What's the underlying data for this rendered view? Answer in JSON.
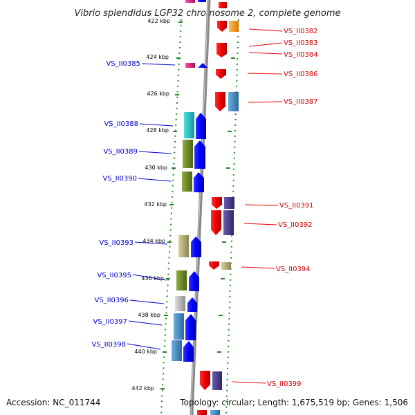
{
  "title": "Vibrio splendidus LGP32 chromosome 2, complete genome",
  "accession": "Accession: NC_011744",
  "topology": "Topology: circular; Length: 1,675,519 bp; Genes: 1,506",
  "axis_ticks": [
    "422 kbp",
    "424 kbp",
    "426 kbp",
    "428 kbp",
    "430 kbp",
    "432 kbp",
    "434 kbp",
    "436 kbp",
    "438 kbp",
    "440 kbp",
    "442 kbp"
  ],
  "genes": [
    {
      "label": "VS_II0382",
      "side": "right"
    },
    {
      "label": "VS_II0383",
      "side": "right"
    },
    {
      "label": "VS_II0384",
      "side": "right"
    },
    {
      "label": "VS_II0385",
      "side": "left"
    },
    {
      "label": "VS_II0386",
      "side": "right"
    },
    {
      "label": "VS_II0387",
      "side": "right"
    },
    {
      "label": "VS_II0388",
      "side": "left"
    },
    {
      "label": "VS_II0389",
      "side": "left"
    },
    {
      "label": "VS_II0390",
      "side": "left"
    },
    {
      "label": "VS_II0391",
      "side": "right"
    },
    {
      "label": "VS_II0392",
      "side": "right"
    },
    {
      "label": "VS_II0393",
      "side": "left"
    },
    {
      "label": "VS_II0394",
      "side": "right"
    },
    {
      "label": "VS_II0395",
      "side": "left"
    },
    {
      "label": "VS_II0396",
      "side": "left"
    },
    {
      "label": "VS_II0397",
      "side": "left"
    },
    {
      "label": "VS_II0398",
      "side": "left"
    },
    {
      "label": "VS_II0399",
      "side": "right"
    }
  ],
  "colors": {
    "forward_label": "#0000cc",
    "reverse_label": "#cc0000",
    "backbone": "#888888",
    "ticks": "#228822",
    "cog_blue": "#0000ff",
    "cog_red": "#ee0000",
    "cog_cyan": "#22c4c8",
    "cog_olive": "#6e8a2a",
    "cog_khaki": "#b7b07a",
    "cog_steel": "#4a8fc4",
    "cog_navy": "#4a3d8f",
    "cog_magenta": "#e0157a",
    "cog_orange": "#f39a1e",
    "cog_grey": "#b8b8b8"
  }
}
